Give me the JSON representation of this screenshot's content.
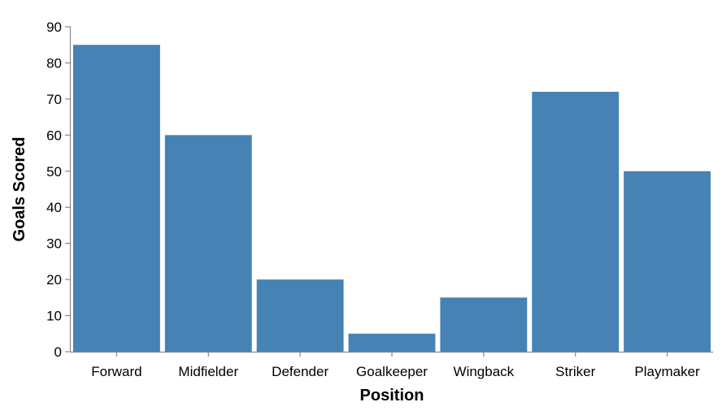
{
  "chart_data": {
    "type": "bar",
    "categories": [
      "Forward",
      "Midfielder",
      "Defender",
      "Goalkeeper",
      "Wingback",
      "Striker",
      "Playmaker"
    ],
    "values": [
      85,
      60,
      20,
      5,
      15,
      72,
      50
    ],
    "xlabel": "Position",
    "ylabel": "Goals Scored",
    "ylim": [
      0,
      90
    ],
    "yticks": [
      0,
      10,
      20,
      30,
      40,
      50,
      60,
      70,
      80,
      90
    ],
    "grid": false,
    "bar_color": "#4682b4"
  }
}
